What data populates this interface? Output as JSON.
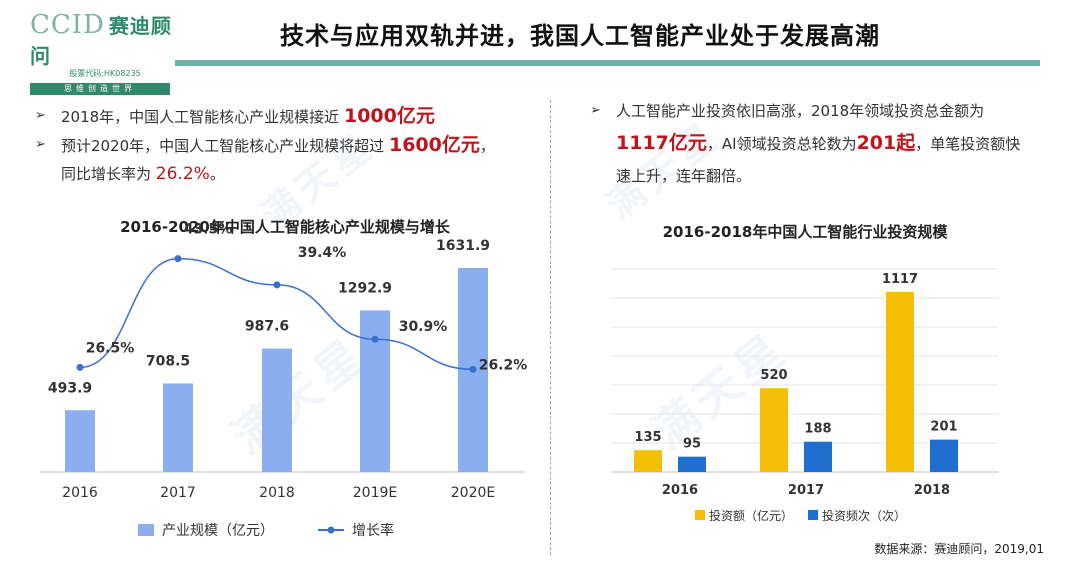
{
  "logo": {
    "main": "CCID",
    "cn": "赛迪顾问",
    "code": "股票代码:HK08235",
    "slogan": "思维创造世界"
  },
  "title": "技术与应用双轨并进，我国人工智能产业处于发展高潮",
  "left": {
    "b1_text": "2018年，中国人工智能核心产业规模接近",
    "b1_hl": "1000亿元",
    "b2_text": "预计2020年，中国人工智能核心产业规模将超过",
    "b2_hl": "1600亿元",
    "b2_tail": "，",
    "b2_text2": "同比增长率为",
    "b2_hl2": "26.2%",
    "b2_end": "。"
  },
  "right": {
    "b1_text": "人工智能产业投资依旧高涨，2018年领域投资总金额为",
    "b1_hl": "1117亿元",
    "b1_mid": "，AI领域投资总轮数为",
    "b1_hl2": "201起",
    "b1_tail": "，单笔投资额快速上升，连年翻倍。"
  },
  "watermark": "满天星",
  "source": "数据来源：赛迪顾问，2019,01",
  "colors": {
    "bar_blue": "#8aaef0",
    "line_blue": "#3a6fcf",
    "invest_yellow": "#f4bd06",
    "invest_blue": "#1f6fd0",
    "accent_red": "#c0141c"
  },
  "chart_data": [
    {
      "type": "bar",
      "title": "2016-2020年中国人工智能核心产业规模与增长",
      "categories": [
        "2016",
        "2017",
        "2018",
        "2019E",
        "2020E"
      ],
      "series": [
        {
          "name": "产业规模（亿元）",
          "values": [
            493.9,
            708.5,
            987.6,
            1292.9,
            1631.9
          ]
        },
        {
          "name": "增长率",
          "type": "line",
          "values": [
            26.5,
            43.5,
            39.4,
            30.9,
            26.2
          ],
          "labels": [
            "26.5%",
            "43.5%",
            "39.4%",
            "30.9%",
            "26.2%"
          ]
        }
      ],
      "legend": "bottom",
      "grid": false
    },
    {
      "type": "bar",
      "title": "2016-2018年中国人工智能行业投资规模",
      "categories": [
        "2016",
        "2017",
        "2018"
      ],
      "series": [
        {
          "name": "投资额（亿元）",
          "values": [
            135,
            520,
            1117
          ]
        },
        {
          "name": "投资频次（次）",
          "values": [
            95,
            188,
            201
          ]
        }
      ],
      "legend": "bottom",
      "grid": true
    }
  ]
}
